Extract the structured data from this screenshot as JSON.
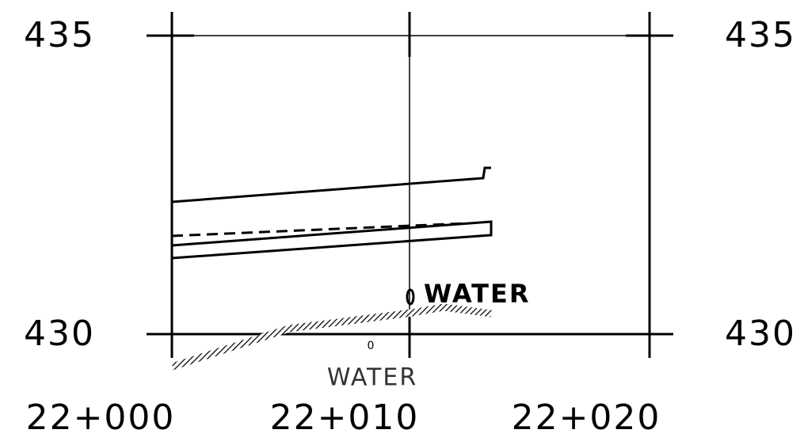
{
  "elevations_left": [
    "435",
    "430"
  ],
  "elevations_right": [
    "435",
    "430"
  ],
  "stations": [
    "22+000",
    "22+010",
    "22+020"
  ],
  "water_label": "WATER",
  "water_offset": "0",
  "water_station_label": "WATER"
}
